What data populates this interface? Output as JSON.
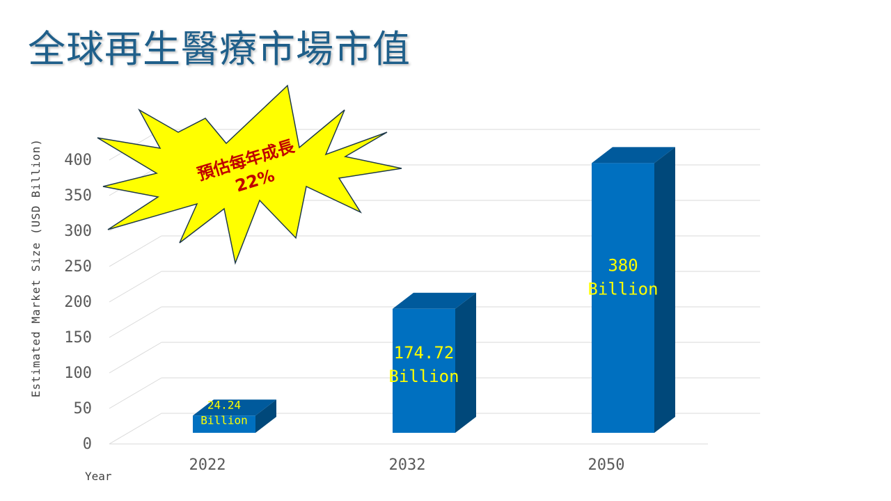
{
  "slide": {
    "title": "全球再生醫療市場市值"
  },
  "callout": {
    "line1": "預估每年成長",
    "line2": "22%",
    "fill": "#ffff00",
    "text_color": "#c00000"
  },
  "chart_data": {
    "type": "bar",
    "categories": [
      "2022",
      "2032",
      "2050"
    ],
    "values": [
      24.24,
      174.72,
      380
    ],
    "data_labels": [
      [
        "24.24",
        "Billion"
      ],
      [
        "174.72",
        "Billion"
      ],
      [
        "380",
        "Billion"
      ]
    ],
    "ylabel": "Estimated Market Size (USD Billion)",
    "xlabel": "Year",
    "ylim": [
      0,
      400
    ],
    "yticks": [
      0,
      50,
      100,
      150,
      200,
      250,
      300,
      350,
      400
    ],
    "grid": true,
    "legend": "none",
    "colors": {
      "bar_front": "#0070c0",
      "bar_side": "#00487a",
      "bar_top": "#005a9c",
      "data_label": "#ffff00",
      "grid": "#d9d9d9",
      "axis_text": "#595959"
    }
  }
}
